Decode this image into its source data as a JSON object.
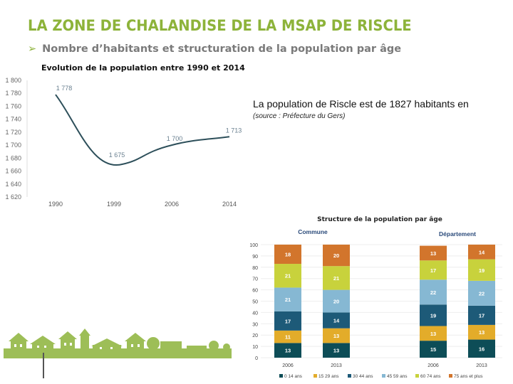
{
  "header": {
    "title": "LA ZONE DE CHALANDISE DE LA MSAP DE RISCLE",
    "subtitle": "Nombre d’habitants et structuration de la population par âge"
  },
  "info": {
    "text": "La population de Riscle est de 1827 habitants en",
    "source": "(source : Préfecture du Gers)"
  },
  "colors": {
    "title": "#8db33a",
    "line": "#2d4f5a"
  },
  "chart_data": [
    {
      "type": "line",
      "title": "Evolution de la population entre 1990 et 2014",
      "x": [
        "1990",
        "1999",
        "2006",
        "2014"
      ],
      "values": [
        1778,
        1675,
        1700,
        1713
      ],
      "data_labels": [
        "1 778",
        "1 675",
        "1 700",
        "1 713"
      ],
      "ylim": [
        1620,
        1800
      ],
      "yticks": [
        "1 620",
        "1 640",
        "1 660",
        "1 680",
        "1 700",
        "1 720",
        "1 740",
        "1 760",
        "1 780",
        "1 800"
      ],
      "grid": false
    },
    {
      "type": "bar",
      "stacked": true,
      "title": "Structure de la population par âge",
      "groups": [
        "Commune",
        "Département"
      ],
      "categories": [
        "2006",
        "2013",
        "2006",
        "2013"
      ],
      "ylim": [
        0,
        100
      ],
      "yticks": [
        "0",
        "10",
        "20",
        "30",
        "40",
        "50",
        "60",
        "70",
        "80",
        "90",
        "100"
      ],
      "legend": "bottom",
      "series": [
        {
          "name": "0 14 ans",
          "color": "#0d4d57",
          "values": [
            13,
            13,
            15,
            16
          ]
        },
        {
          "name": "15 29 ans",
          "color": "#e3ac2a",
          "values": [
            11,
            13,
            13,
            13
          ]
        },
        {
          "name": "30 44 ans",
          "color": "#1d5a78",
          "values": [
            17,
            14,
            19,
            17
          ]
        },
        {
          "name": "45 59 ans",
          "color": "#86b8d3",
          "values": [
            21,
            20,
            22,
            22
          ]
        },
        {
          "name": "60 74 ans",
          "color": "#c8d23c",
          "values": [
            21,
            21,
            17,
            19
          ]
        },
        {
          "name": "75 ans et plus",
          "color": "#d2752c",
          "values": [
            18,
            20,
            13,
            14
          ]
        }
      ]
    }
  ]
}
